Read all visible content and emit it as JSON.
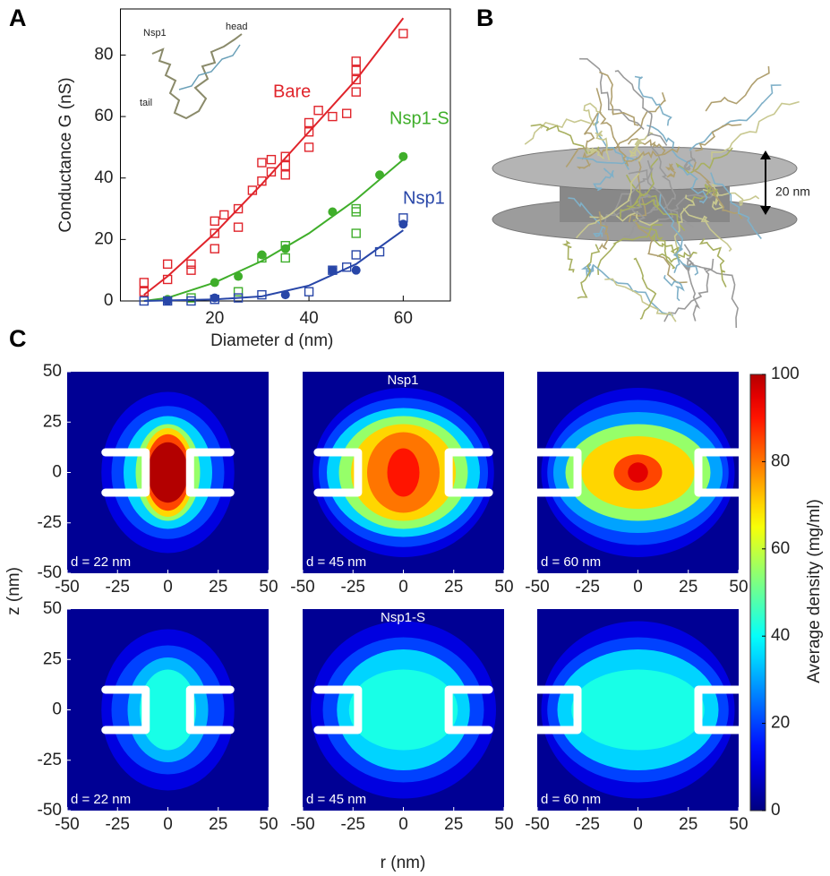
{
  "panel_labels": [
    "A",
    "B",
    "C"
  ],
  "panel_b": {
    "scale_label": "20 nm"
  },
  "chart_data": [
    {
      "type": "scatter",
      "xlabel": "Diameter d (nm)",
      "ylabel": "Conductance G (nS)",
      "annotations": [
        "Nsp1",
        "head",
        "tail"
      ],
      "xlim": [
        0,
        70
      ],
      "xticks": [
        20,
        40,
        60
      ],
      "ylim": [
        0,
        95
      ],
      "yticks": [
        0,
        20,
        40,
        60,
        80
      ],
      "series": [
        {
          "name": "Bare",
          "color": "#e0242b",
          "x": [
            5,
            5,
            10,
            10,
            15,
            15,
            20,
            20,
            20,
            22,
            25,
            25,
            28,
            30,
            30,
            32,
            32,
            35,
            35,
            35,
            40,
            40,
            40,
            42,
            45,
            48,
            50,
            50,
            50,
            50,
            60
          ],
          "values": [
            3,
            6,
            7,
            12,
            10,
            12,
            17,
            22,
            26,
            28,
            24,
            30,
            36,
            39,
            45,
            42,
            46,
            41,
            44,
            47,
            50,
            55,
            58,
            62,
            60,
            61,
            68,
            72,
            75,
            78,
            87
          ],
          "fit_x": [
            5,
            10,
            20,
            30,
            40,
            50,
            60
          ],
          "fit_values": [
            2,
            8,
            22,
            38,
            55,
            72,
            92
          ]
        },
        {
          "name": "Nsp1-S",
          "color": "#3fae2a",
          "x": [
            15,
            25,
            30,
            35,
            35,
            50,
            50,
            50
          ],
          "values": [
            1,
            3,
            14,
            14,
            18,
            22,
            29,
            30
          ],
          "filled_x": [
            10,
            20,
            25,
            30,
            35,
            45,
            55,
            60
          ],
          "filled_values": [
            0.5,
            6,
            8,
            15,
            17,
            29,
            41,
            47
          ],
          "fit_x": [
            5,
            10,
            20,
            30,
            40,
            50,
            60
          ],
          "fit_values": [
            0,
            1,
            6,
            13,
            22,
            33,
            46
          ]
        },
        {
          "name": "Nsp1",
          "color": "#2846a8",
          "x": [
            5,
            10,
            15,
            20,
            25,
            30,
            40,
            45,
            48,
            50,
            55,
            60
          ],
          "values": [
            0,
            0,
            0,
            0.5,
            1,
            2,
            3,
            10,
            11,
            15,
            16,
            27
          ],
          "filled_x": [
            10,
            20,
            35,
            45,
            50,
            60
          ],
          "filled_values": [
            0,
            1,
            2,
            10,
            10,
            25
          ],
          "fit_x": [
            5,
            20,
            30,
            40,
            50,
            60
          ],
          "fit_values": [
            0,
            0.5,
            1.5,
            5,
            12,
            23
          ]
        }
      ]
    },
    {
      "type": "heatmap",
      "xlabel": "r (nm)",
      "ylabel": "z (nm)",
      "xlim": [
        -50,
        50
      ],
      "xticks": [
        -50,
        -25,
        0,
        25,
        50
      ],
      "ylim": [
        -50,
        50
      ],
      "yticks": [
        -50,
        -25,
        0,
        25,
        50
      ],
      "colormap": "jet",
      "clim": [
        0,
        100
      ],
      "cticks": [
        0,
        20,
        40,
        60,
        80,
        100
      ],
      "colorbar_label": "Average density (mg/ml)",
      "rows": [
        {
          "name": "Nsp1",
          "panels": [
            {
              "label": "d = 22 nm",
              "d": 22,
              "levels": [
                {
                  "value": 10,
                  "r": 33,
                  "z": 40
                },
                {
                  "value": 20,
                  "r": 28,
                  "z": 33
                },
                {
                  "value": 35,
                  "r": 22,
                  "z": 28
                },
                {
                  "value": 55,
                  "r": 16,
                  "z": 24
                },
                {
                  "value": 70,
                  "r": 13,
                  "z": 22
                },
                {
                  "value": 85,
                  "r": 11,
                  "z": 19
                },
                {
                  "value": 100,
                  "r": 10,
                  "z": 15
                }
              ]
            },
            {
              "label": "d = 45 nm",
              "d": 45,
              "levels": [
                {
                  "value": 10,
                  "r": 45,
                  "z": 42
                },
                {
                  "value": 20,
                  "r": 42,
                  "z": 37
                },
                {
                  "value": 35,
                  "r": 38,
                  "z": 32
                },
                {
                  "value": 55,
                  "r": 32,
                  "z": 28
                },
                {
                  "value": 70,
                  "r": 26,
                  "z": 24
                },
                {
                  "value": 80,
                  "r": 18,
                  "z": 20
                },
                {
                  "value": 90,
                  "r": 8,
                  "z": 12
                }
              ]
            },
            {
              "label": "d = 60 nm",
              "d": 60,
              "levels": [
                {
                  "value": 10,
                  "r": 48,
                  "z": 42
                },
                {
                  "value": 20,
                  "r": 45,
                  "z": 36
                },
                {
                  "value": 30,
                  "r": 42,
                  "z": 30
                },
                {
                  "value": 55,
                  "r": 36,
                  "z": 24
                },
                {
                  "value": 70,
                  "r": 28,
                  "z": 18
                },
                {
                  "value": 85,
                  "r": 12,
                  "z": 9
                },
                {
                  "value": 95,
                  "r": 5,
                  "z": 5
                }
              ]
            }
          ]
        },
        {
          "name": "Nsp1-S",
          "panels": [
            {
              "label": "d = 22 nm",
              "d": 22,
              "levels": [
                {
                  "value": 10,
                  "r": 33,
                  "z": 40
                },
                {
                  "value": 20,
                  "r": 28,
                  "z": 32
                },
                {
                  "value": 32,
                  "r": 20,
                  "z": 26
                },
                {
                  "value": 42,
                  "r": 14,
                  "z": 20
                }
              ]
            },
            {
              "label": "d = 45 nm",
              "d": 45,
              "levels": [
                {
                  "value": 10,
                  "r": 46,
                  "z": 44
                },
                {
                  "value": 20,
                  "r": 40,
                  "z": 36
                },
                {
                  "value": 35,
                  "r": 33,
                  "z": 30
                },
                {
                  "value": 42,
                  "r": 27,
                  "z": 20
                }
              ]
            },
            {
              "label": "d = 60 nm",
              "d": 60,
              "levels": [
                {
                  "value": 10,
                  "r": 48,
                  "z": 44
                },
                {
                  "value": 20,
                  "r": 45,
                  "z": 36
                },
                {
                  "value": 35,
                  "r": 40,
                  "z": 30
                },
                {
                  "value": 42,
                  "r": 33,
                  "z": 20
                }
              ]
            }
          ]
        }
      ]
    }
  ]
}
